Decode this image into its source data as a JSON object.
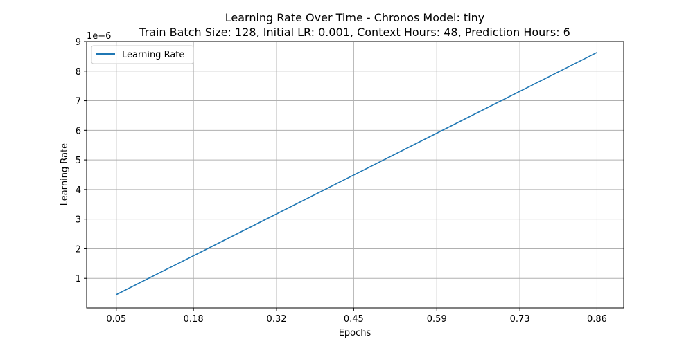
{
  "chart_data": {
    "type": "line",
    "title": "Learning Rate Over Time - Chronos Model: tiny",
    "subtitle": "Train Batch Size: 128, Initial LR: 0.001, Context Hours: 48, Prediction Hours: 6",
    "xlabel": "Epochs",
    "ylabel": "Learning Rate",
    "y_offset_label": "1e−6",
    "xlim": [
      0.0,
      0.905
    ],
    "ylim": [
      0.0,
      9.0
    ],
    "y_scale_factor": 1e-06,
    "x_ticks": [
      0.05,
      0.18,
      0.32,
      0.45,
      0.59,
      0.73,
      0.86
    ],
    "x_tick_labels": [
      "0.05",
      "0.18",
      "0.32",
      "0.45",
      "0.59",
      "0.73",
      "0.86"
    ],
    "y_ticks": [
      1,
      2,
      3,
      4,
      5,
      6,
      7,
      8,
      9
    ],
    "y_tick_labels": [
      "1",
      "2",
      "3",
      "4",
      "5",
      "6",
      "7",
      "8",
      "9"
    ],
    "grid": true,
    "legend_position": "top-left",
    "series": [
      {
        "name": "Learning Rate",
        "color": "#1f77b4",
        "x": [
          0.05,
          0.86
        ],
        "y": [
          0.45,
          8.63
        ]
      }
    ]
  }
}
